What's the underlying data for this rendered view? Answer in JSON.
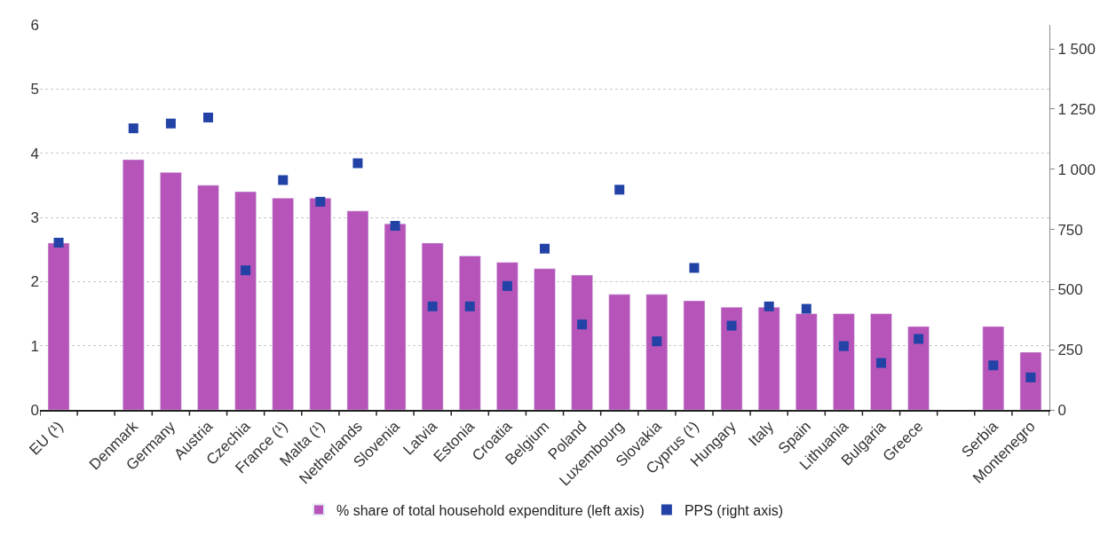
{
  "chart_data": {
    "type": "bar",
    "categories": [
      "EU (¹)",
      null,
      "Denmark",
      "Germany",
      "Austria",
      "Czechia",
      "France (¹)",
      "Malta (¹)",
      "Netherlands",
      "Slovenia",
      "Latvia",
      "Estonia",
      "Croatia",
      "Belgium",
      "Poland",
      "Luxembourg",
      "Slovakia",
      "Cyprus (¹)",
      "Hungary",
      "Italy",
      "Spain",
      "Lithuania",
      "Bulgaria",
      "Greece",
      null,
      "Serbia",
      "Montenegro"
    ],
    "series": [
      {
        "name": "% share of total household expenditure (left axis)",
        "color": "#b754b9",
        "values": [
          2.6,
          null,
          3.9,
          3.7,
          3.5,
          3.4,
          3.3,
          3.3,
          3.1,
          2.9,
          2.6,
          2.4,
          2.3,
          2.2,
          2.1,
          1.8,
          1.8,
          1.7,
          1.6,
          1.6,
          1.5,
          1.5,
          1.5,
          1.3,
          null,
          1.3,
          0.9
        ]
      },
      {
        "name": "PPS (right axis)",
        "type": "scatter",
        "axis": "y2",
        "marker": "square",
        "color": "#2242a6",
        "values": [
          695,
          null,
          1170,
          1190,
          1215,
          580,
          955,
          865,
          1025,
          765,
          430,
          430,
          515,
          670,
          355,
          915,
          285,
          590,
          350,
          430,
          420,
          265,
          195,
          295,
          null,
          185,
          135
        ]
      }
    ],
    "ylim": [
      0,
      6
    ],
    "yticks": [
      0,
      1,
      2,
      3,
      4,
      5,
      6
    ],
    "y2lim": [
      0,
      1600
    ],
    "y2ticks": [
      0,
      250,
      500,
      750,
      {
        "value": 1000,
        "label": "1 000"
      },
      {
        "value": 1250,
        "label": "1 250"
      },
      {
        "value": 1500,
        "label": "1 500"
      }
    ],
    "grid": "y",
    "legend": "bottom"
  }
}
